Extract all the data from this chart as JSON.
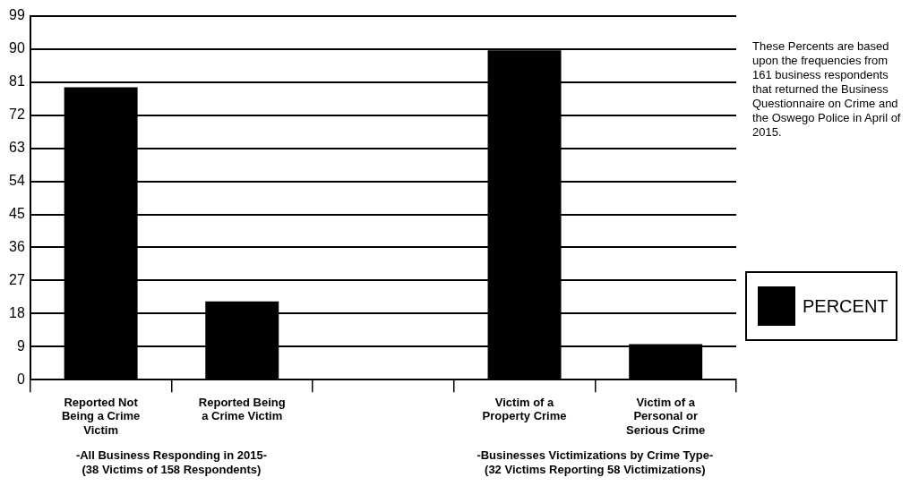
{
  "chart_data": {
    "type": "bar",
    "categories": [
      "Reported Not Being a Crime Victim",
      "Reported Being a Crime Victim",
      null,
      "Victim of a Property Crime",
      "Victim of a Personal or Serious Crime"
    ],
    "series": [
      {
        "name": "PERCENT",
        "color": "#000000",
        "values": [
          79.6,
          21.3,
          null,
          89.7,
          9.7
        ]
      }
    ],
    "ylim": [
      0,
      99
    ],
    "yticks": [
      0,
      9,
      18,
      27,
      36,
      45,
      54,
      63,
      72,
      81,
      90,
      99
    ],
    "grid": "y",
    "legend": "right",
    "annotations": [
      "-All Business Responding in 2015-\n(38 Victims of 158 Respondents)",
      "-Businesses Victimizations by Crime Type-\n(32 Victims Reporting 58 Victimizations)",
      "These Percents are based upon the frequencies from 161 business respondents that returned the Business Questionnaire on Crime and the Oswego Police in April of 2015."
    ]
  }
}
